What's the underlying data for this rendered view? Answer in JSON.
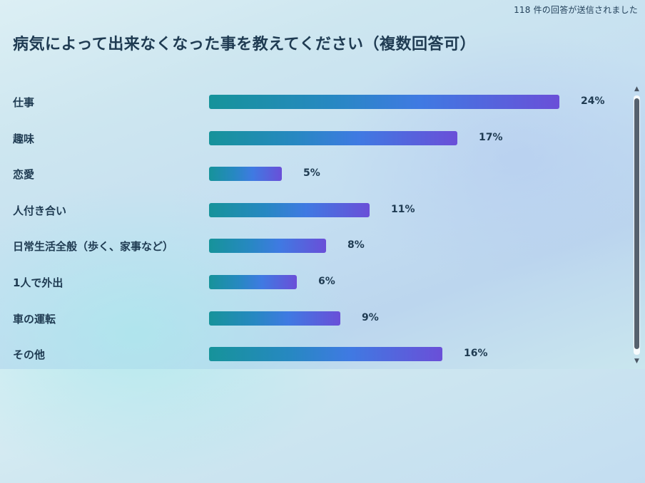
{
  "header": {
    "response_count": "118 件の回答が送信されました",
    "question_title": "病気によって出来なくなった事を教えてください（複数回答可）"
  },
  "colors": {
    "bar_gradient": [
      "#16939a",
      "#2788c2",
      "#3f7ae2",
      "#6a4fd8"
    ],
    "text": "#1f3b52"
  },
  "scrollbar": {
    "up_icon": "▲",
    "down_icon": "▼"
  },
  "chart_data": {
    "type": "bar",
    "orientation": "horizontal",
    "categories": [
      "仕事",
      "趣味",
      "恋愛",
      "人付き合い",
      "日常生活全般（歩く、家事など）",
      "1人で外出",
      "車の運転",
      "その他"
    ],
    "values": [
      24,
      17,
      5,
      11,
      8,
      6,
      9,
      16
    ],
    "value_labels": [
      "24%",
      "17%",
      "5%",
      "11%",
      "8%",
      "6%",
      "9%",
      "16%"
    ],
    "unit": "%",
    "xlim": [
      0,
      24
    ]
  }
}
